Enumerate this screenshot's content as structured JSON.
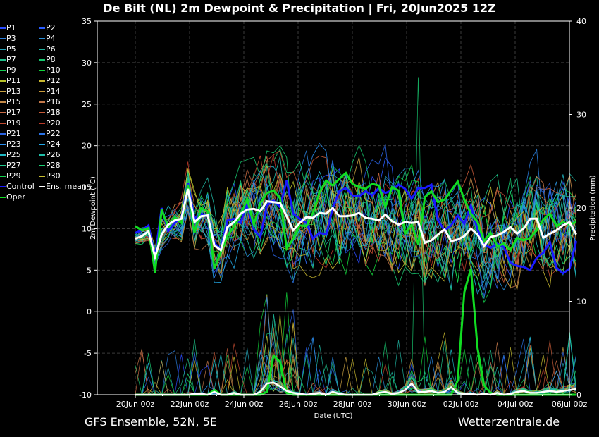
{
  "header": {
    "title": "De Bilt  (NL)  2m Dewpoint & Precipitation | Fri, 20Jun2025 12Z"
  },
  "footer": {
    "left": "GFS Ensemble, 52N, 5E",
    "right": "Wetterzentrale.de"
  },
  "chart_data": {
    "type": "line",
    "title": "De Bilt  (NL)  2m Dewpoint & Precipitation | Fri, 20Jun2025 12Z",
    "xlabel": "Date (UTC)",
    "ylabel": "2m Dewpoint (°C)",
    "ylabel_right": "Precipitation (mm)",
    "x_range": [
      0,
      16.5
    ],
    "x_ticks": [
      {
        "day": 0,
        "label": "20Jun 00z"
      },
      {
        "day": 2,
        "label": "22Jun 00z"
      },
      {
        "day": 4,
        "label": "24Jun 00z"
      },
      {
        "day": 6,
        "label": "26Jun 00z"
      },
      {
        "day": 8,
        "label": "28Jun 00z"
      },
      {
        "day": 10,
        "label": "30Jun 00z"
      },
      {
        "day": 12,
        "label": "02Jul 00z"
      },
      {
        "day": 14,
        "label": "04Jul 00z"
      },
      {
        "day": 16,
        "label": "06Jul 00z"
      }
    ],
    "y_ticks": [
      35,
      30,
      25,
      20,
      15,
      10,
      5,
      0,
      -5,
      -10
    ],
    "ylim": [
      -10,
      35
    ],
    "y2_ticks": [
      0,
      10,
      20,
      30,
      40
    ],
    "y2lim": [
      0,
      40
    ],
    "grid": true,
    "legend_placement": "left",
    "members": [
      "P1",
      "P2",
      "P3",
      "P4",
      "P5",
      "P6",
      "P7",
      "P8",
      "P9",
      "P10",
      "P11",
      "P12",
      "P13",
      "P14",
      "P15",
      "P16",
      "P17",
      "P18",
      "P19",
      "P20",
      "P21",
      "P22",
      "P23",
      "P24",
      "P25",
      "P26",
      "P27",
      "P28",
      "P29",
      "P30",
      "Control",
      "Ens. mean",
      "Oper"
    ],
    "member_colors": [
      "#2b4bff",
      "#2a5cff",
      "#2a7dd9",
      "#2a8ed6",
      "#21a3b8",
      "#1fb3a0",
      "#1fbf8a",
      "#17c76e",
      "#13cf52",
      "#12d33a",
      "#b8c22a",
      "#c9b830",
      "#c8a040",
      "#c99a3a",
      "#c58a48",
      "#c3784a",
      "#c96a44",
      "#c65a38",
      "#c24a30",
      "#b93a2a",
      "#2a62e0",
      "#2a73e6",
      "#2a8ff0",
      "#23a8e6",
      "#1fb9c4",
      "#1fbfa8",
      "#1ec98c",
      "#19cf72",
      "#14d34e",
      "#c8c030",
      "#1a1aff",
      "#ffffff",
      "#11dd22"
    ],
    "control": {
      "name": "Control",
      "dewpoint": [
        9.5,
        9.8,
        10.4,
        6.6,
        12.5,
        9.7,
        10.7,
        11.3,
        15.5,
        11.2,
        11.8,
        11.5,
        8.3,
        7.5,
        11.0,
        11.2,
        10.7,
        13.1,
        9.9,
        9.0,
        12.8,
        13.4,
        12.6,
        15.8,
        11.8,
        11.2,
        10.7,
        8.8,
        9.5,
        9.3,
        12.5,
        14.5,
        14.9,
        14.0,
        13.9,
        14.5,
        14.0,
        14.9,
        14.3,
        14.6,
        15.3,
        14.8,
        13.6,
        14.9,
        14.9,
        15.3,
        11.0,
        9.8,
        10.4,
        11.6,
        10.6,
        12.8,
        9.9,
        8.1,
        7.7,
        8.2,
        7.8,
        5.9,
        5.5,
        5.4,
        5.0,
        6.5,
        7.1,
        8.4,
        5.3,
        4.6,
        5.2,
        8.5
      ]
    },
    "oper": {
      "name": "Oper",
      "dewpoint": [
        10.3,
        9.8,
        10.1,
        4.7,
        12.3,
        10.2,
        11.3,
        10.7,
        15.3,
        9.5,
        12.5,
        12.1,
        5.2,
        7.2,
        9.1,
        10.3,
        11.6,
        13.6,
        10.5,
        13.1,
        14.3,
        14.6,
        13.7,
        7.6,
        8.8,
        10.4,
        10.3,
        11.9,
        14.4,
        15.8,
        15.2,
        16.0,
        16.7,
        15.4,
        15.0,
        14.8,
        15.4,
        15.2,
        12.6,
        15.0,
        14.6,
        9.4,
        10.5,
        8.1,
        13.8,
        14.5,
        13.2,
        13.5,
        14.6,
        15.7,
        13.5,
        11.8,
        10.8,
        8.5,
        9.5,
        7.9,
        8.2,
        7.4,
        8.9,
        8.6,
        8.9,
        9.8,
        11.1,
        11.8,
        10.3,
        10.8,
        10.5,
        10.8
      ],
      "precip": [
        0,
        0,
        0,
        0,
        0,
        0,
        0,
        0,
        0,
        0,
        0,
        0,
        0.5,
        0,
        0,
        0,
        0,
        0,
        0,
        0,
        0.3,
        4.2,
        3.5,
        0.2,
        0,
        0,
        0,
        0,
        0,
        0,
        0,
        0,
        0,
        0,
        0,
        0,
        0,
        0,
        0,
        0,
        0,
        0,
        0,
        0,
        0,
        0,
        0,
        0,
        0,
        1.5,
        11.0,
        13.5,
        5.0,
        1.0,
        0.2,
        0,
        0,
        0,
        0,
        0,
        0,
        0,
        0,
        0,
        0,
        0,
        0,
        0
      ]
    },
    "ens_mean": {
      "name": "Ens. mean",
      "dewpoint": [
        8.8,
        9.1,
        9.7,
        6.6,
        9.3,
        10.5,
        11.0,
        11.2,
        14.8,
        10.8,
        11.5,
        11.6,
        8.0,
        7.4,
        10.2,
        10.8,
        11.8,
        12.3,
        12.4,
        12.1,
        13.3,
        13.2,
        13.1,
        11.5,
        9.8,
        10.7,
        11.4,
        11.3,
        11.9,
        11.8,
        12.5,
        11.5,
        11.5,
        11.6,
        11.9,
        11.3,
        11.2,
        11.0,
        11.7,
        10.9,
        10.5,
        10.8,
        10.7,
        10.8,
        8.3,
        8.6,
        9.3,
        9.9,
        8.5,
        8.7,
        9.1,
        10.0,
        9.3,
        7.9,
        9.0,
        9.2,
        9.6,
        10.2,
        9.4,
        10.0,
        11.2,
        11.2,
        8.9,
        9.4,
        9.8,
        10.4,
        10.8,
        9.3
      ],
      "precip": [
        0,
        0,
        0,
        0,
        0,
        0,
        0,
        0,
        0,
        0.1,
        0.1,
        0,
        0.3,
        0,
        0,
        0.2,
        0,
        0,
        0,
        0.3,
        1.2,
        1.3,
        0.9,
        0.4,
        0.2,
        0.1,
        0,
        0.1,
        0.2,
        0,
        0.3,
        0.1,
        0,
        0,
        0,
        0,
        0,
        0.2,
        0.3,
        0.1,
        0.2,
        0.5,
        1.2,
        0.3,
        0.3,
        0.4,
        0.2,
        0.3,
        0.8,
        0.2,
        0.1,
        0.1,
        0,
        0.1,
        0,
        0.2,
        0,
        0.1,
        0.3,
        0.4,
        0.2,
        0.2,
        0.3,
        0.4,
        0.3,
        0.4,
        0.5,
        0.6
      ]
    },
    "spike": {
      "member": "P8",
      "day": 10.5,
      "precip_mm": 34
    }
  }
}
